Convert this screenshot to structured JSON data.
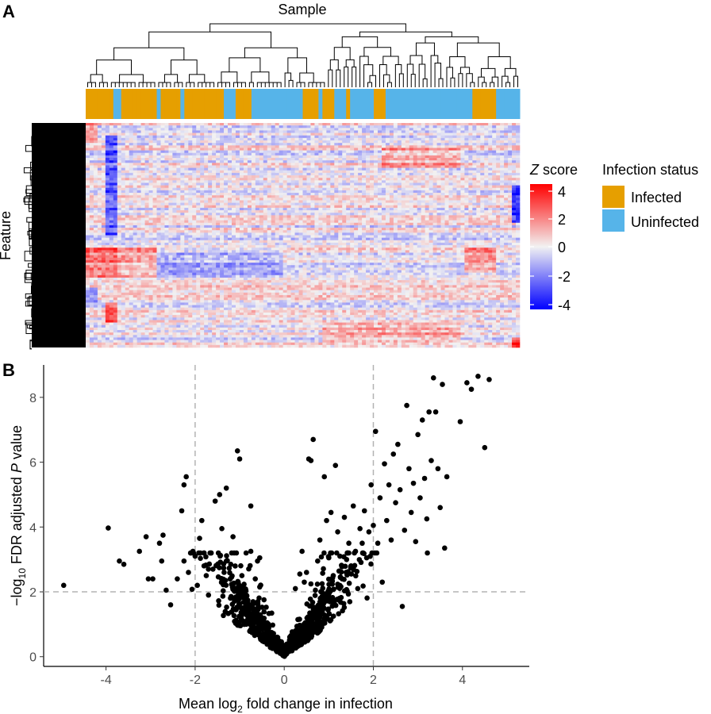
{
  "panel_a": {
    "letter": "A",
    "column_label": "Sample",
    "row_label": "Feature",
    "zscore_title_italic": "Z",
    "zscore_title_rest": " score",
    "zscore_ticks": [
      "4",
      "2",
      "0",
      "-2",
      "-4"
    ],
    "status_title": "Infection status",
    "status_items": [
      {
        "label": "Infected",
        "color": "#E69F00"
      },
      {
        "label": "Uninfected",
        "color": "#56B4E9"
      }
    ],
    "colors": {
      "high": "#FF0000",
      "mid": "#F2F2F2",
      "low": "#0000FF"
    }
  },
  "chart_data": [
    {
      "type": "heatmap",
      "title": "",
      "xlabel": "Sample",
      "ylabel": "Feature",
      "value_range": [
        -4,
        4
      ],
      "color_scale": "Z score",
      "annotation_status_sequence": [
        "Infected",
        "Infected",
        "Infected",
        "Infected",
        "Infected",
        "Infected",
        "Infected",
        "Uninfected",
        "Uninfected",
        "Infected",
        "Infected",
        "Infected",
        "Infected",
        "Infected",
        "Infected",
        "Infected",
        "Infected",
        "Infected",
        "Uninfected",
        "Infected",
        "Infected",
        "Infected",
        "Infected",
        "Infected",
        "Uninfected",
        "Infected",
        "Infected",
        "Infected",
        "Infected",
        "Infected",
        "Infected",
        "Infected",
        "Infected",
        "Infected",
        "Infected",
        "Uninfected",
        "Uninfected",
        "Uninfected",
        "Infected",
        "Infected",
        "Infected",
        "Infected",
        "Uninfected",
        "Uninfected",
        "Uninfected",
        "Uninfected",
        "Uninfected",
        "Uninfected",
        "Uninfected",
        "Uninfected",
        "Uninfected",
        "Uninfected",
        "Uninfected",
        "Uninfected",
        "Uninfected",
        "Infected",
        "Infected",
        "Infected",
        "Infected",
        "Uninfected",
        "Infected",
        "Infected",
        "Infected",
        "Uninfected",
        "Uninfected",
        "Uninfected",
        "Infected",
        "Uninfected",
        "Uninfected",
        "Uninfected",
        "Uninfected",
        "Uninfected",
        "Uninfected",
        "Infected",
        "Infected",
        "Infected",
        "Uninfected",
        "Uninfected",
        "Uninfected",
        "Uninfected",
        "Uninfected",
        "Uninfected",
        "Uninfected",
        "Uninfected",
        "Uninfected",
        "Uninfected",
        "Uninfected",
        "Uninfected",
        "Uninfected",
        "Uninfected",
        "Uninfected",
        "Uninfected",
        "Uninfected",
        "Uninfected",
        "Uninfected",
        "Uninfected",
        "Uninfected",
        "Uninfected",
        "Infected",
        "Infected",
        "Infected",
        "Infected",
        "Infected",
        "Infected",
        "Uninfected",
        "Uninfected",
        "Uninfected",
        "Uninfected",
        "Uninfected",
        "Uninfected"
      ]
    },
    {
      "type": "scatter",
      "title": "",
      "letter": "B",
      "xlabel": "Mean log₂ fold change in infection",
      "xlabel_parts": [
        "Mean log",
        "2",
        " fold change in infection"
      ],
      "ylabel": "−log₁₀ FDR adjusted P value",
      "ylabel_parts": [
        "−log",
        "10",
        " FDR adjusted ",
        "P",
        " value"
      ],
      "xlim": [
        -5.4,
        5.5
      ],
      "ylim": [
        -0.3,
        9.0
      ],
      "xticks": [
        -4,
        -2,
        0,
        2,
        4
      ],
      "yticks": [
        0,
        2,
        4,
        6,
        8
      ],
      "threshold_lines": {
        "x": [
          -2,
          2
        ],
        "y": [
          2
        ]
      },
      "grid": false,
      "points": [
        [
          -4.95,
          2.2
        ],
        [
          -3.95,
          3.97
        ],
        [
          -3.7,
          2.95
        ],
        [
          -3.6,
          2.85
        ],
        [
          -3.25,
          3.25
        ],
        [
          -3.1,
          3.7
        ],
        [
          -3.05,
          2.4
        ],
        [
          -2.95,
          2.4
        ],
        [
          -2.8,
          3.5
        ],
        [
          -2.75,
          2.95
        ],
        [
          -2.72,
          3.75
        ],
        [
          -2.65,
          2.05
        ],
        [
          -2.55,
          1.6
        ],
        [
          -2.4,
          2.4
        ],
        [
          -2.3,
          4.5
        ],
        [
          -2.25,
          5.3
        ],
        [
          -2.2,
          5.55
        ],
        [
          -2.25,
          2.95
        ],
        [
          -2.15,
          2.6
        ],
        [
          -2.05,
          3.25
        ],
        [
          -2.0,
          3.1
        ],
        [
          -1.95,
          2.2
        ],
        [
          -1.9,
          3.65
        ],
        [
          -1.85,
          4.2
        ],
        [
          -1.8,
          2.8
        ],
        [
          -1.75,
          2.5
        ],
        [
          -1.7,
          1.9
        ],
        [
          -1.6,
          2.7
        ],
        [
          -1.55,
          4.8
        ],
        [
          -1.45,
          5.0
        ],
        [
          -1.4,
          3.95
        ],
        [
          -1.35,
          2.6
        ],
        [
          -1.3,
          5.2
        ],
        [
          -1.3,
          2.95
        ],
        [
          -1.2,
          2.85
        ],
        [
          -1.15,
          3.7
        ],
        [
          -1.05,
          6.35
        ],
        [
          -1.0,
          6.1
        ],
        [
          -0.95,
          2.5
        ],
        [
          -0.9,
          2.1
        ],
        [
          -0.85,
          1.8
        ],
        [
          -0.75,
          4.65
        ],
        [
          -0.75,
          3.25
        ],
        [
          -0.65,
          2.4
        ],
        [
          -0.6,
          2.95
        ],
        [
          -0.55,
          2.15
        ],
        [
          -0.55,
          3.05
        ],
        [
          0.25,
          2.1
        ],
        [
          0.35,
          2.55
        ],
        [
          0.4,
          3.25
        ],
        [
          0.45,
          2.3
        ],
        [
          0.5,
          2.6
        ],
        [
          0.55,
          6.1
        ],
        [
          0.6,
          6.05
        ],
        [
          0.65,
          6.7
        ],
        [
          0.7,
          2.05
        ],
        [
          0.75,
          2.95
        ],
        [
          0.8,
          3.6
        ],
        [
          0.85,
          2.25
        ],
        [
          0.9,
          5.55
        ],
        [
          0.95,
          4.2
        ],
        [
          1.0,
          3.05
        ],
        [
          1.05,
          4.45
        ],
        [
          1.1,
          2.5
        ],
        [
          1.15,
          5.9
        ],
        [
          1.2,
          3.85
        ],
        [
          1.25,
          3.1
        ],
        [
          1.3,
          2.4
        ],
        [
          1.35,
          4.3
        ],
        [
          1.45,
          3.5
        ],
        [
          1.5,
          2.8
        ],
        [
          1.55,
          4.65
        ],
        [
          1.6,
          3.25
        ],
        [
          1.65,
          2.1
        ],
        [
          1.7,
          3.95
        ],
        [
          1.75,
          3.5
        ],
        [
          1.8,
          4.5
        ],
        [
          1.85,
          3.05
        ],
        [
          1.9,
          3.85
        ],
        [
          1.95,
          5.3
        ],
        [
          2.0,
          4.05
        ],
        [
          2.05,
          6.95
        ],
        [
          2.1,
          3.5
        ],
        [
          2.15,
          4.9
        ],
        [
          2.2,
          2.3
        ],
        [
          2.25,
          5.95
        ],
        [
          2.3,
          4.2
        ],
        [
          2.35,
          5.3
        ],
        [
          2.4,
          3.6
        ],
        [
          2.45,
          6.25
        ],
        [
          2.5,
          4.75
        ],
        [
          2.55,
          6.55
        ],
        [
          2.6,
          5.15
        ],
        [
          2.65,
          1.55
        ],
        [
          2.7,
          3.9
        ],
        [
          2.75,
          7.75
        ],
        [
          2.8,
          5.8
        ],
        [
          2.85,
          4.45
        ],
        [
          2.9,
          5.35
        ],
        [
          2.95,
          3.55
        ],
        [
          3.0,
          6.85
        ],
        [
          3.05,
          4.9
        ],
        [
          3.1,
          7.3
        ],
        [
          3.15,
          5.5
        ],
        [
          3.2,
          4.25
        ],
        [
          3.25,
          7.55
        ],
        [
          3.3,
          6.05
        ],
        [
          3.35,
          8.6
        ],
        [
          3.4,
          7.55
        ],
        [
          3.45,
          5.8
        ],
        [
          3.5,
          4.6
        ],
        [
          3.55,
          8.4
        ],
        [
          3.6,
          3.35
        ],
        [
          3.65,
          5.55
        ],
        [
          3.95,
          7.25
        ],
        [
          4.1,
          8.45
        ],
        [
          4.2,
          8.25
        ],
        [
          4.35,
          8.65
        ],
        [
          4.5,
          6.45
        ],
        [
          4.6,
          8.55
        ]
      ]
    }
  ]
}
